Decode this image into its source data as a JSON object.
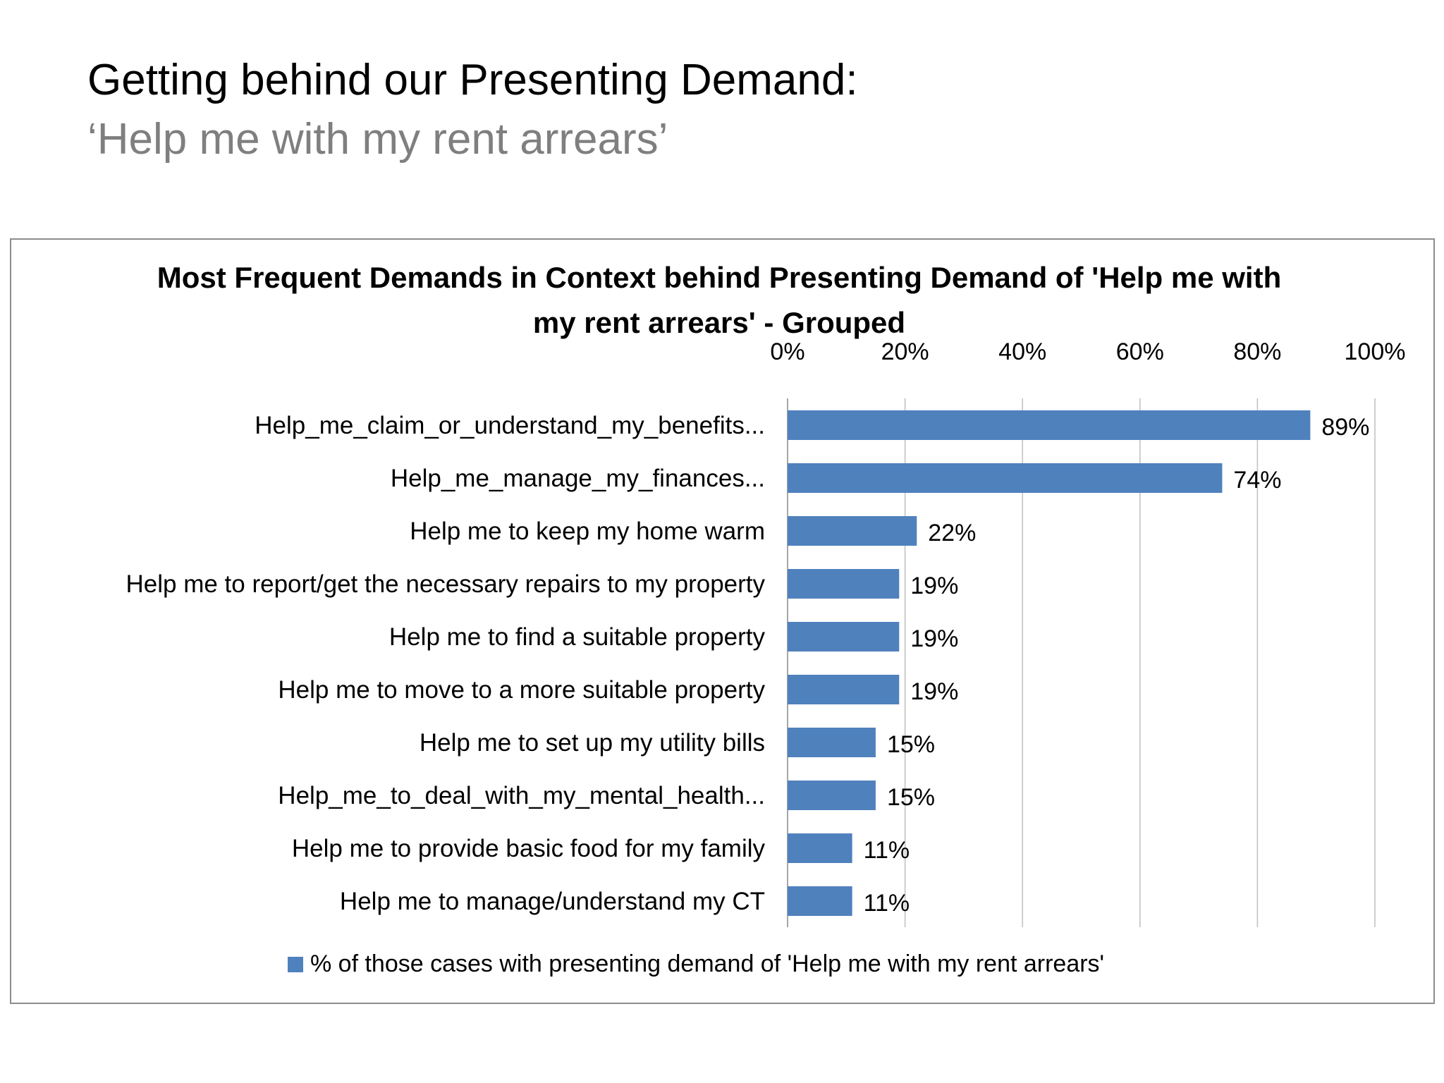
{
  "slide": {
    "title": "Getting behind our Presenting Demand:",
    "subtitle": "‘Help me with my rent arrears’"
  },
  "colors": {
    "bar": "#4f81bd",
    "gridline": "#bfbfbf",
    "subtitle": "#7f7f7f"
  },
  "chart_data": {
    "type": "bar",
    "orientation": "horizontal",
    "title": "Most Frequent Demands in Context behind Presenting Demand of 'Help me with my rent arrears' - Grouped",
    "categories": [
      "Help_me_claim_or_understand_my_benefits...",
      "Help_me_manage_my_finances...",
      "Help me to keep my home warm",
      "Help me to report/get the necessary repairs to my property",
      "Help me to find a suitable property",
      "Help me to move to a more suitable property",
      "Help me to set up my utility bills",
      "Help_me_to_deal_with_my_mental_health...",
      "Help me to provide basic food for my family",
      "Help me to manage/understand my CT"
    ],
    "series": [
      {
        "name": "% of those cases with presenting demand of 'Help me with my rent arrears'",
        "values": [
          89,
          74,
          22,
          19,
          19,
          19,
          15,
          15,
          11,
          11
        ],
        "data_labels": [
          "89%",
          "74%",
          "22%",
          "19%",
          "19%",
          "19%",
          "15%",
          "15%",
          "11%",
          "11%"
        ]
      }
    ],
    "x_ticks": [
      "0%",
      "20%",
      "40%",
      "60%",
      "80%",
      "100%"
    ],
    "xlim": [
      0,
      100
    ],
    "x_axis_position": "top",
    "grid": true,
    "legend_position": "bottom"
  }
}
